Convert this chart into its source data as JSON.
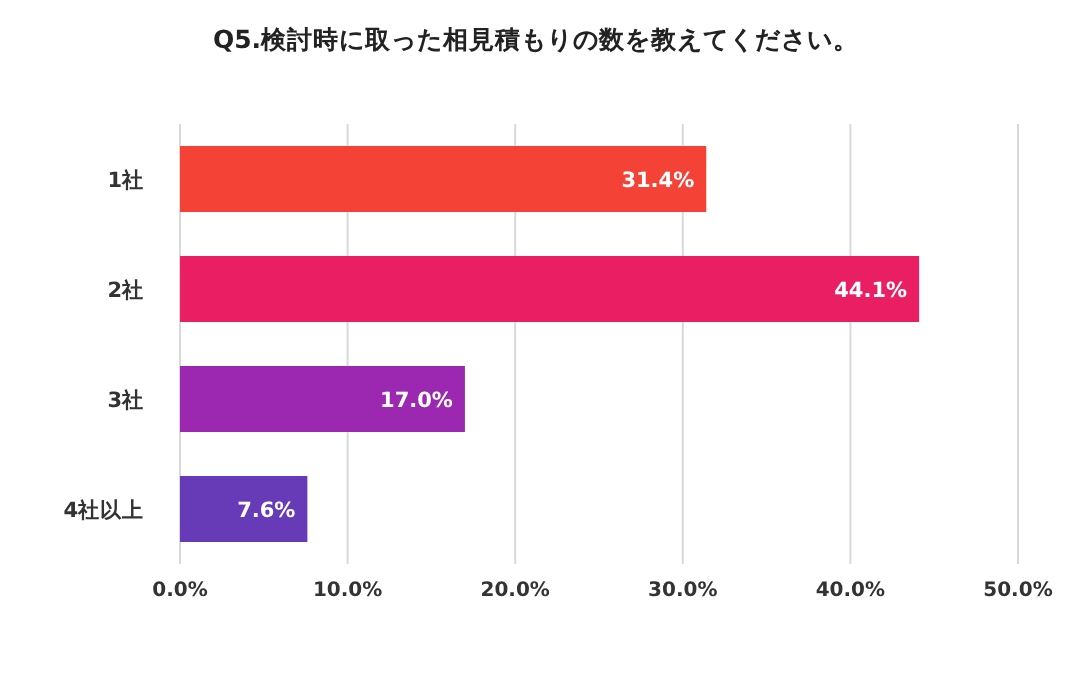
{
  "chart_data": {
    "type": "bar",
    "orientation": "horizontal",
    "title": "Q5.検討時に取った相見積もりの数を教えてください。",
    "categories": [
      "1社",
      "2社",
      "3社",
      "4社以上"
    ],
    "values": [
      31.4,
      44.1,
      17.0,
      7.6
    ],
    "colors": [
      "#f44336",
      "#e91e63",
      "#9c27b0",
      "#673ab7"
    ],
    "value_labels": [
      "31.4%",
      "44.1%",
      "17.0%",
      "7.6%"
    ],
    "xlim": [
      0,
      50
    ],
    "xticks": [
      {
        "value": 0,
        "label": "0.0%"
      },
      {
        "value": 10,
        "label": "10.0%"
      },
      {
        "value": 20,
        "label": "20.0%"
      },
      {
        "value": 30,
        "label": "30.0%"
      },
      {
        "value": 40,
        "label": "40.0%"
      },
      {
        "value": 50,
        "label": "50.0%"
      }
    ],
    "grid": "x"
  }
}
